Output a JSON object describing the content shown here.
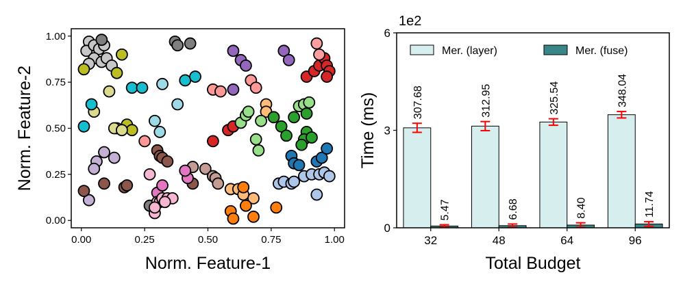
{
  "chart_data": [
    {
      "type": "scatter",
      "xlabel": "Norm. Feature-1",
      "ylabel": "Norm. Feature-2",
      "xlim": [
        -0.04,
        1.04
      ],
      "ylim": [
        -0.04,
        1.04
      ],
      "xticks": [
        0.0,
        0.25,
        0.5,
        0.75,
        1.0
      ],
      "xtick_labels": [
        "0.00",
        "0.25",
        "0.50",
        "0.75",
        "1.00"
      ],
      "yticks": [
        0.0,
        0.25,
        0.5,
        0.75,
        1.0
      ],
      "ytick_labels": [
        "0.00",
        "0.25",
        "0.50",
        "0.75",
        "1.00"
      ],
      "grid": false,
      "clusters": [
        {
          "color": "#c7c7c7",
          "points": [
            [
              0.03,
              0.97
            ],
            [
              0.02,
              0.92
            ],
            [
              0.05,
              0.95
            ],
            [
              0.07,
              0.93
            ],
            [
              0.05,
              0.88
            ],
            [
              0.08,
              0.86
            ],
            [
              0.1,
              0.88
            ],
            [
              0.12,
              0.84
            ],
            [
              0.09,
              0.95
            ],
            [
              0.03,
              0.85
            ]
          ]
        },
        {
          "color": "#7f7f7f",
          "points": [
            [
              0.08,
              0.98
            ],
            [
              0.37,
              0.97
            ],
            [
              0.38,
              0.95
            ],
            [
              0.43,
              0.96
            ],
            [
              0.27,
              0.08
            ]
          ]
        },
        {
          "color": "#bcbd22",
          "points": [
            [
              0.01,
              0.82
            ],
            [
              0.16,
              0.9
            ],
            [
              0.14,
              0.8
            ],
            [
              0.18,
              0.52
            ],
            [
              0.14,
              0.5
            ],
            [
              0.2,
              0.49
            ]
          ]
        },
        {
          "color": "#dbdb8d",
          "points": [
            [
              0.11,
              0.7
            ],
            [
              0.13,
              0.5
            ],
            [
              0.16,
              0.49
            ],
            [
              0.05,
              0.59
            ]
          ]
        },
        {
          "color": "#17becf",
          "points": [
            [
              0.01,
              0.51
            ],
            [
              0.04,
              0.63
            ],
            [
              0.2,
              0.72
            ],
            [
              0.24,
              0.72
            ],
            [
              0.41,
              0.76
            ],
            [
              0.45,
              0.78
            ]
          ]
        },
        {
          "color": "#9edae5",
          "points": [
            [
              0.32,
              0.74
            ],
            [
              0.38,
              0.63
            ],
            [
              0.29,
              0.54
            ],
            [
              0.31,
              0.48
            ]
          ]
        },
        {
          "color": "#c5b0d5",
          "points": [
            [
              0.09,
              0.37
            ],
            [
              0.06,
              0.32
            ],
            [
              0.05,
              0.28
            ],
            [
              0.13,
              0.34
            ],
            [
              0.03,
              0.11
            ]
          ]
        },
        {
          "color": "#9467bd",
          "points": [
            [
              0.6,
              0.92
            ],
            [
              0.63,
              0.87
            ],
            [
              0.65,
              0.84
            ],
            [
              0.6,
              0.71
            ],
            [
              0.8,
              0.92
            ],
            [
              0.82,
              0.87
            ]
          ]
        },
        {
          "color": "#ff9896",
          "points": [
            [
              0.52,
              0.71
            ],
            [
              0.55,
              0.7
            ],
            [
              0.67,
              0.76
            ],
            [
              0.69,
              0.72
            ],
            [
              0.25,
              0.43
            ]
          ]
        },
        {
          "color": "#ffbb78",
          "points": [
            [
              0.73,
              0.63
            ],
            [
              0.73,
              0.59
            ],
            [
              0.59,
              0.17
            ],
            [
              0.62,
              0.17
            ],
            [
              0.64,
              0.14
            ],
            [
              0.68,
              0.12
            ]
          ]
        },
        {
          "color": "#ff7f0e",
          "points": [
            [
              0.59,
              0.05
            ],
            [
              0.6,
              0.01
            ],
            [
              0.65,
              0.08
            ],
            [
              0.68,
              0.02
            ],
            [
              0.77,
              0.07
            ],
            [
              0.64,
              0.18
            ]
          ]
        },
        {
          "color": "#d62728",
          "points": [
            [
              0.52,
              0.43
            ],
            [
              0.58,
              0.49
            ],
            [
              0.6,
              0.51
            ],
            [
              0.89,
              0.78
            ],
            [
              0.92,
              0.81
            ],
            [
              0.94,
              0.84
            ],
            [
              0.96,
              0.88
            ],
            [
              0.97,
              0.84
            ],
            [
              0.98,
              0.81
            ],
            [
              0.97,
              0.78
            ]
          ]
        },
        {
          "color": "#ff9ea0",
          "points": [
            [
              0.93,
              0.96
            ],
            [
              0.94,
              0.9
            ]
          ]
        },
        {
          "color": "#98df8a",
          "points": [
            [
              0.63,
              0.53
            ],
            [
              0.65,
              0.57
            ],
            [
              0.66,
              0.59
            ],
            [
              0.71,
              0.54
            ],
            [
              0.69,
              0.44
            ],
            [
              0.7,
              0.38
            ],
            [
              0.86,
              0.62
            ],
            [
              0.88,
              0.63
            ],
            [
              0.9,
              0.64
            ]
          ]
        },
        {
          "color": "#2ca02c",
          "points": [
            [
              0.76,
              0.56
            ],
            [
              0.79,
              0.51
            ],
            [
              0.81,
              0.46
            ],
            [
              0.84,
              0.56
            ],
            [
              0.89,
              0.58
            ],
            [
              0.89,
              0.48
            ],
            [
              0.88,
              0.44
            ],
            [
              0.91,
              0.45
            ],
            [
              0.87,
              0.41
            ]
          ]
        },
        {
          "color": "#1f77b4",
          "points": [
            [
              0.83,
              0.35
            ],
            [
              0.84,
              0.31
            ],
            [
              0.86,
              0.3
            ],
            [
              0.93,
              0.32
            ],
            [
              0.95,
              0.34
            ],
            [
              0.97,
              0.39
            ]
          ]
        },
        {
          "color": "#aec7e8",
          "points": [
            [
              0.78,
              0.2
            ],
            [
              0.8,
              0.21
            ],
            [
              0.83,
              0.2
            ],
            [
              0.88,
              0.24
            ],
            [
              0.91,
              0.25
            ],
            [
              0.94,
              0.25
            ],
            [
              0.96,
              0.26
            ],
            [
              0.98,
              0.24
            ],
            [
              0.93,
              0.14
            ],
            [
              0.84,
              0.21
            ]
          ]
        },
        {
          "color": "#8c564b",
          "points": [
            [
              0.01,
              0.16
            ],
            [
              0.09,
              0.2
            ],
            [
              0.17,
              0.18
            ],
            [
              0.18,
              0.19
            ],
            [
              0.3,
              0.38
            ],
            [
              0.31,
              0.35
            ],
            [
              0.32,
              0.34
            ],
            [
              0.34,
              0.32
            ],
            [
              0.44,
              0.2
            ]
          ]
        },
        {
          "color": "#c49c94",
          "points": [
            [
              0.44,
              0.29
            ],
            [
              0.49,
              0.28
            ],
            [
              0.52,
              0.24
            ],
            [
              0.53,
              0.23
            ],
            [
              0.54,
              0.2
            ]
          ]
        },
        {
          "color": "#e377c2",
          "points": [
            [
              0.3,
              0.15
            ],
            [
              0.32,
              0.19
            ],
            [
              0.42,
              0.23
            ],
            [
              0.41,
              0.27
            ]
          ]
        },
        {
          "color": "#f7b6d2",
          "points": [
            [
              0.27,
              0.25
            ],
            [
              0.29,
              0.04
            ],
            [
              0.3,
              0.1
            ],
            [
              0.31,
              0.1
            ],
            [
              0.32,
              0.12
            ],
            [
              0.34,
              0.12
            ],
            [
              0.36,
              0.12
            ],
            [
              0.33,
              0.1
            ],
            [
              0.29,
              0.07
            ]
          ]
        }
      ]
    },
    {
      "type": "bar",
      "xlabel": "Total Budget",
      "ylabel": "Time (ms)",
      "scale_label": "1e2",
      "ylim": [
        0,
        6.0
      ],
      "yticks": [
        0,
        3,
        6
      ],
      "ytick_labels": [
        "0",
        "3",
        "6"
      ],
      "categories": [
        "32",
        "48",
        "64",
        "96"
      ],
      "series": [
        {
          "name": "Mer. (layer)",
          "color": "#d6eeee",
          "values": [
            3.0768,
            3.1295,
            3.2554,
            3.4804
          ],
          "errors": [
            0.14,
            0.14,
            0.1,
            0.1
          ],
          "labels": [
            "307.68",
            "312.95",
            "325.54",
            "348.04"
          ]
        },
        {
          "name": "Mer. (fuse)",
          "color": "#3a8585",
          "values": [
            0.0547,
            0.0668,
            0.084,
            0.1174
          ],
          "errors": [
            0.04,
            0.05,
            0.07,
            0.07
          ],
          "labels": [
            "5.47",
            "6.68",
            "8.40",
            "11.74"
          ]
        }
      ],
      "error_bar_color": "#ff0000",
      "legend_position": "top"
    }
  ]
}
